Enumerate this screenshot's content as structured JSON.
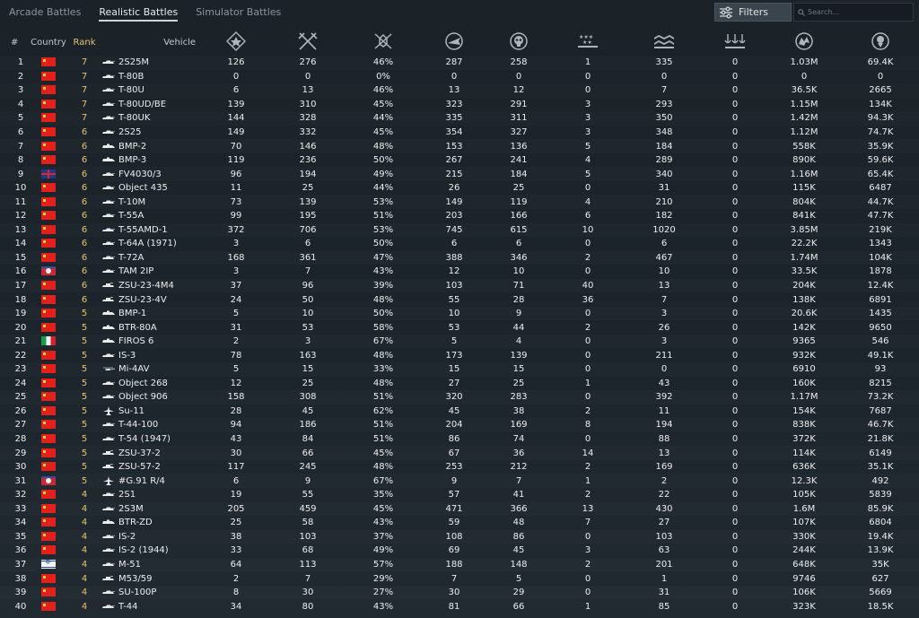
{
  "tabs": [
    {
      "label": "Arcade Battles",
      "active": false
    },
    {
      "label": "Realistic Battles",
      "active": true
    },
    {
      "label": "Simulator Battles",
      "active": false
    }
  ],
  "toolbar": {
    "filters_label": "Filters",
    "search_placeholder": "Search..."
  },
  "columns": {
    "index": "#",
    "country": "Country",
    "rank": "Rank",
    "vehicle": "Vehicle",
    "stat_icons": [
      "battles-icon",
      "kills-icon",
      "win-rate-icon",
      "ground-kills-icon",
      "deaths-icon",
      "air-kills-icon",
      "assists-icon",
      "naval-kills-icon",
      "silver-icon",
      "research-icon"
    ]
  },
  "rows": [
    {
      "n": "1",
      "flag": "cn",
      "rank": "7",
      "vehicle": "2S25M",
      "icon": "tank",
      "s": [
        "126",
        "276",
        "46%",
        "287",
        "258",
        "1",
        "335",
        "0",
        "1.03M",
        "69.4K"
      ]
    },
    {
      "n": "2",
      "flag": "cn",
      "rank": "7",
      "vehicle": "T-80B",
      "icon": "tank",
      "s": [
        "0",
        "0",
        "0%",
        "0",
        "0",
        "0",
        "0",
        "0",
        "0",
        "0"
      ]
    },
    {
      "n": "3",
      "flag": "cn",
      "rank": "7",
      "vehicle": "T-80U",
      "icon": "tank",
      "s": [
        "6",
        "13",
        "46%",
        "13",
        "12",
        "0",
        "7",
        "0",
        "36.5K",
        "2665"
      ]
    },
    {
      "n": "4",
      "flag": "cn",
      "rank": "7",
      "vehicle": "T-80UD/BE",
      "icon": "tank",
      "s": [
        "139",
        "310",
        "45%",
        "323",
        "291",
        "3",
        "293",
        "0",
        "1.15M",
        "134K"
      ]
    },
    {
      "n": "5",
      "flag": "cn",
      "rank": "7",
      "vehicle": "T-80UK",
      "icon": "tank",
      "s": [
        "144",
        "328",
        "44%",
        "335",
        "311",
        "3",
        "350",
        "0",
        "1.42M",
        "94.3K"
      ]
    },
    {
      "n": "6",
      "flag": "cn",
      "rank": "6",
      "vehicle": "2S25",
      "icon": "tank",
      "s": [
        "149",
        "332",
        "45%",
        "354",
        "327",
        "3",
        "348",
        "0",
        "1.12M",
        "74.7K"
      ]
    },
    {
      "n": "7",
      "flag": "cn",
      "rank": "6",
      "vehicle": "BMP-2",
      "icon": "ifv",
      "s": [
        "70",
        "146",
        "48%",
        "153",
        "136",
        "5",
        "184",
        "0",
        "558K",
        "35.9K"
      ]
    },
    {
      "n": "8",
      "flag": "cn",
      "rank": "6",
      "vehicle": "BMP-3",
      "icon": "ifv",
      "s": [
        "119",
        "236",
        "50%",
        "267",
        "241",
        "4",
        "289",
        "0",
        "890K",
        "59.6K"
      ]
    },
    {
      "n": "9",
      "flag": "gb",
      "rank": "6",
      "vehicle": "FV4030/3",
      "icon": "tank",
      "s": [
        "96",
        "194",
        "49%",
        "215",
        "184",
        "5",
        "340",
        "0",
        "1.16M",
        "65.4K"
      ]
    },
    {
      "n": "10",
      "flag": "cn",
      "rank": "6",
      "vehicle": "Object 435",
      "icon": "tank",
      "s": [
        "11",
        "25",
        "44%",
        "26",
        "25",
        "0",
        "31",
        "0",
        "115K",
        "6487"
      ]
    },
    {
      "n": "11",
      "flag": "cn",
      "rank": "6",
      "vehicle": "T-10M",
      "icon": "tank",
      "s": [
        "73",
        "139",
        "53%",
        "149",
        "119",
        "4",
        "210",
        "0",
        "804K",
        "44.7K"
      ]
    },
    {
      "n": "12",
      "flag": "cn",
      "rank": "6",
      "vehicle": "T-55A",
      "icon": "tank",
      "s": [
        "99",
        "195",
        "51%",
        "203",
        "166",
        "6",
        "182",
        "0",
        "841K",
        "47.7K"
      ]
    },
    {
      "n": "13",
      "flag": "cn",
      "rank": "6",
      "vehicle": "T-55AMD-1",
      "icon": "tank",
      "s": [
        "372",
        "706",
        "53%",
        "745",
        "615",
        "10",
        "1020",
        "0",
        "3.85M",
        "219K"
      ]
    },
    {
      "n": "14",
      "flag": "cn",
      "rank": "6",
      "vehicle": "T-64A (1971)",
      "icon": "tank",
      "s": [
        "3",
        "6",
        "50%",
        "6",
        "6",
        "0",
        "6",
        "0",
        "22.2K",
        "1343"
      ]
    },
    {
      "n": "15",
      "flag": "cn",
      "rank": "6",
      "vehicle": "T-72A",
      "icon": "tank",
      "s": [
        "168",
        "361",
        "47%",
        "388",
        "346",
        "2",
        "467",
        "0",
        "1.74M",
        "104K"
      ]
    },
    {
      "n": "16",
      "flag": "nk",
      "rank": "6",
      "vehicle": "TAM 2IP",
      "icon": "tank",
      "s": [
        "3",
        "7",
        "43%",
        "12",
        "10",
        "0",
        "10",
        "0",
        "33.5K",
        "1878"
      ]
    },
    {
      "n": "17",
      "flag": "cn",
      "rank": "6",
      "vehicle": "ZSU-23-4M4",
      "icon": "spaa",
      "s": [
        "37",
        "96",
        "39%",
        "103",
        "71",
        "40",
        "13",
        "0",
        "204K",
        "12.4K"
      ]
    },
    {
      "n": "18",
      "flag": "cn",
      "rank": "6",
      "vehicle": "ZSU-23-4V",
      "icon": "spaa",
      "s": [
        "24",
        "50",
        "48%",
        "55",
        "28",
        "36",
        "7",
        "0",
        "138K",
        "6891"
      ]
    },
    {
      "n": "19",
      "flag": "cn",
      "rank": "5",
      "vehicle": "BMP-1",
      "icon": "ifv",
      "s": [
        "5",
        "10",
        "50%",
        "10",
        "9",
        "0",
        "3",
        "0",
        "20.6K",
        "1435"
      ]
    },
    {
      "n": "20",
      "flag": "cn",
      "rank": "5",
      "vehicle": "BTR-80A",
      "icon": "ifv",
      "s": [
        "31",
        "53",
        "58%",
        "53",
        "44",
        "2",
        "26",
        "0",
        "142K",
        "9650"
      ]
    },
    {
      "n": "21",
      "flag": "it",
      "rank": "5",
      "vehicle": "FIROS 6",
      "icon": "ifv",
      "s": [
        "2",
        "3",
        "67%",
        "5",
        "4",
        "0",
        "3",
        "0",
        "9365",
        "546"
      ]
    },
    {
      "n": "22",
      "flag": "cn",
      "rank": "5",
      "vehicle": "IS-3",
      "icon": "tank",
      "s": [
        "78",
        "163",
        "48%",
        "173",
        "139",
        "0",
        "211",
        "0",
        "932K",
        "49.1K"
      ]
    },
    {
      "n": "23",
      "flag": "cn",
      "rank": "5",
      "vehicle": "Mi-4AV",
      "icon": "heli",
      "s": [
        "5",
        "15",
        "33%",
        "15",
        "15",
        "0",
        "0",
        "0",
        "6910",
        "93"
      ]
    },
    {
      "n": "24",
      "flag": "cn",
      "rank": "5",
      "vehicle": "Object 268",
      "icon": "tank",
      "s": [
        "12",
        "25",
        "48%",
        "27",
        "25",
        "1",
        "43",
        "0",
        "160K",
        "8215"
      ]
    },
    {
      "n": "25",
      "flag": "cn",
      "rank": "5",
      "vehicle": "Object 906",
      "icon": "tank",
      "s": [
        "158",
        "308",
        "51%",
        "320",
        "283",
        "0",
        "392",
        "0",
        "1.17M",
        "73.2K"
      ]
    },
    {
      "n": "26",
      "flag": "cn",
      "rank": "5",
      "vehicle": "Su-11",
      "icon": "plane",
      "s": [
        "28",
        "45",
        "62%",
        "45",
        "38",
        "2",
        "11",
        "0",
        "154K",
        "7687"
      ]
    },
    {
      "n": "27",
      "flag": "cn",
      "rank": "5",
      "vehicle": "T-44-100",
      "icon": "tank",
      "s": [
        "94",
        "186",
        "51%",
        "204",
        "169",
        "8",
        "194",
        "0",
        "838K",
        "46.7K"
      ]
    },
    {
      "n": "28",
      "flag": "cn",
      "rank": "5",
      "vehicle": "T-54 (1947)",
      "icon": "tank",
      "s": [
        "43",
        "84",
        "51%",
        "86",
        "74",
        "0",
        "88",
        "0",
        "372K",
        "21.8K"
      ]
    },
    {
      "n": "29",
      "flag": "cn",
      "rank": "5",
      "vehicle": "ZSU-37-2",
      "icon": "spaa",
      "s": [
        "30",
        "66",
        "45%",
        "67",
        "36",
        "14",
        "13",
        "0",
        "114K",
        "6149"
      ]
    },
    {
      "n": "30",
      "flag": "cn",
      "rank": "5",
      "vehicle": "ZSU-57-2",
      "icon": "spaa",
      "s": [
        "117",
        "245",
        "48%",
        "253",
        "212",
        "2",
        "169",
        "0",
        "636K",
        "35.1K"
      ]
    },
    {
      "n": "31",
      "flag": "nk",
      "rank": "5",
      "vehicle": "#G.91 R/4",
      "icon": "plane",
      "s": [
        "6",
        "9",
        "67%",
        "9",
        "7",
        "1",
        "2",
        "0",
        "12.3K",
        "492"
      ]
    },
    {
      "n": "32",
      "flag": "cn",
      "rank": "4",
      "vehicle": "2S1",
      "icon": "tank",
      "s": [
        "19",
        "55",
        "35%",
        "57",
        "41",
        "2",
        "22",
        "0",
        "105K",
        "5839"
      ]
    },
    {
      "n": "33",
      "flag": "cn",
      "rank": "4",
      "vehicle": "2S3M",
      "icon": "tank",
      "s": [
        "205",
        "459",
        "45%",
        "471",
        "366",
        "13",
        "430",
        "0",
        "1.6M",
        "85.9K"
      ]
    },
    {
      "n": "34",
      "flag": "cn",
      "rank": "4",
      "vehicle": "BTR-ZD",
      "icon": "ifv",
      "s": [
        "25",
        "58",
        "43%",
        "59",
        "48",
        "7",
        "27",
        "0",
        "107K",
        "6804"
      ]
    },
    {
      "n": "35",
      "flag": "cn",
      "rank": "4",
      "vehicle": "IS-2",
      "icon": "tank",
      "s": [
        "38",
        "103",
        "37%",
        "108",
        "86",
        "0",
        "103",
        "0",
        "330K",
        "19.4K"
      ]
    },
    {
      "n": "36",
      "flag": "cn",
      "rank": "4",
      "vehicle": "IS-2 (1944)",
      "icon": "tank",
      "s": [
        "33",
        "68",
        "49%",
        "69",
        "45",
        "3",
        "63",
        "0",
        "244K",
        "13.9K"
      ]
    },
    {
      "n": "37",
      "flag": "il",
      "rank": "4",
      "vehicle": "M-51",
      "icon": "tank",
      "s": [
        "64",
        "113",
        "57%",
        "188",
        "148",
        "2",
        "201",
        "0",
        "648K",
        "35K"
      ]
    },
    {
      "n": "38",
      "flag": "cn",
      "rank": "4",
      "vehicle": "M53/59",
      "icon": "spaa",
      "s": [
        "2",
        "7",
        "29%",
        "7",
        "5",
        "0",
        "1",
        "0",
        "9746",
        "627"
      ]
    },
    {
      "n": "39",
      "flag": "cn",
      "rank": "4",
      "vehicle": "SU-100P",
      "icon": "tank",
      "s": [
        "8",
        "30",
        "27%",
        "30",
        "29",
        "0",
        "31",
        "0",
        "106K",
        "5669"
      ]
    },
    {
      "n": "40",
      "flag": "cn",
      "rank": "4",
      "vehicle": "T-44",
      "icon": "tank",
      "s": [
        "34",
        "80",
        "43%",
        "81",
        "66",
        "1",
        "85",
        "0",
        "323K",
        "18.5K"
      ]
    }
  ]
}
